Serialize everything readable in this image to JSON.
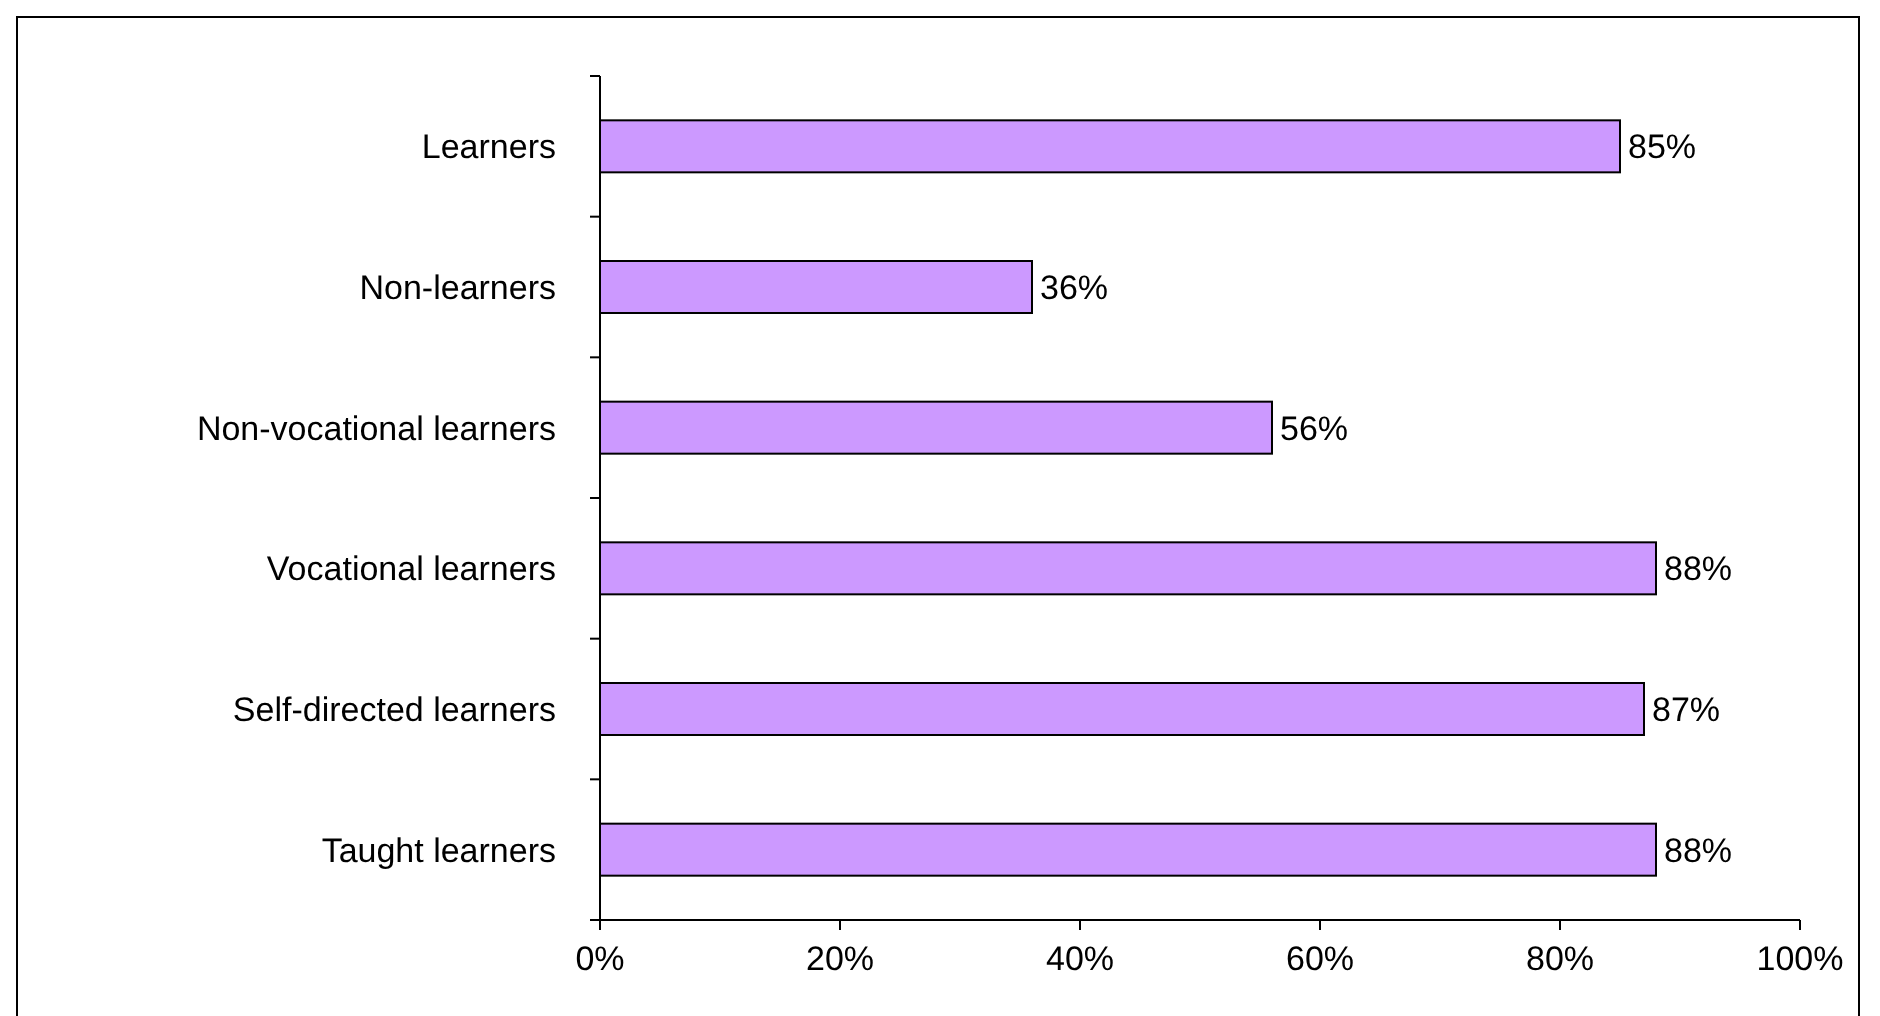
{
  "chart_data": {
    "type": "bar",
    "orientation": "horizontal",
    "categories": [
      "Learners",
      "Non-learners",
      "Non-vocational learners",
      "Vocational learners",
      "Self-directed learners",
      "Taught learners"
    ],
    "values": [
      85,
      36,
      56,
      88,
      87,
      88
    ],
    "color": "#cc99ff",
    "value_labels": [
      "85%",
      "36%",
      "56%",
      "88%",
      "87%",
      "88%"
    ],
    "xlim": [
      0,
      100
    ],
    "xticks": [
      {
        "value": 0,
        "label": "0%"
      },
      {
        "value": 20,
        "label": "20%"
      },
      {
        "value": 40,
        "label": "40%"
      },
      {
        "value": 60,
        "label": "60%"
      },
      {
        "value": 80,
        "label": "80%"
      },
      {
        "value": 100,
        "label": "100%"
      }
    ],
    "grid": false
  }
}
